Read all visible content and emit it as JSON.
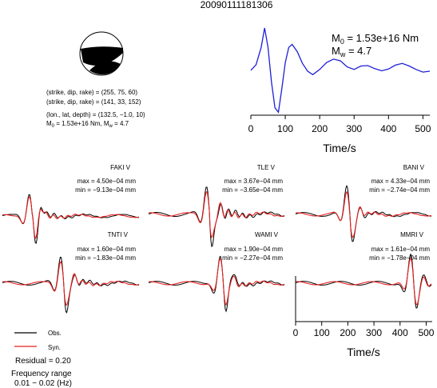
{
  "title": "20090111181306",
  "focal_mechanism": {
    "plane1": "(strike, dip, rake) = (255, 75, 60)",
    "plane2": "(strike, dip, rake) = (141, 33, 152)",
    "location": "(lon., lat, depth) = (132.5, −1.0, 10)",
    "mag_m0": "M",
    "mag_m0_sub": "0",
    "mag_m0_val": " = 1.53e+16 Nm, M",
    "mag_mw_sub": "w",
    "mag_mw_val": " = 4.7"
  },
  "stf": {
    "m0_label": "M",
    "m0_sub": "0",
    "m0_value": " = 1.53e+16 Nm",
    "mw_label": "M",
    "mw_sub": "w",
    "mw_value": " = 4.7",
    "xlabel": "Time/s"
  },
  "bottom_axis": {
    "xlabel": "Time/s"
  },
  "legend": {
    "obs": "Obs.",
    "syn": "Syn.",
    "obs_color": "#000000",
    "syn_color": "#e8201f"
  },
  "residual": "Residual = 0.20",
  "freq_label": "Frequency range",
  "freq_value": "0.01 − 0.02 (Hz)",
  "stations": [
    {
      "name": "FAKI V",
      "max": "max = 4.50e−04 mm",
      "min": "min = −9.13e−04 mm"
    },
    {
      "name": "TLE V",
      "max": "max = 3.67e−04 mm",
      "min": "min = −3.65e−04 mm"
    },
    {
      "name": "BANI V",
      "max": "max = 4.33e−04 mm",
      "min": "min = −2.74e−04 mm"
    },
    {
      "name": "TNTI V",
      "max": "max = 1.60e−04 mm",
      "min": "min = −1.83e−04 mm"
    },
    {
      "name": "WAMI V",
      "max": "max = 1.90e−04 mm",
      "min": "min = −2.27e−04 mm"
    },
    {
      "name": "MMRI V",
      "max": "max = 1.61e−04 mm",
      "min": "min = −1.78e−04 mm"
    }
  ],
  "chart_data": [
    {
      "type": "line",
      "xlabel": "Time/s",
      "xlim": [
        0,
        520
      ],
      "xticks": [
        0,
        100,
        200,
        300,
        400,
        500
      ],
      "series": [
        {
          "color": "#1f1fd8",
          "x": [
            0,
            15,
            30,
            40,
            50,
            60,
            70,
            80,
            90,
            100,
            110,
            120,
            135,
            150,
            165,
            180,
            200,
            220,
            240,
            260,
            280,
            300,
            320,
            340,
            360,
            380,
            400,
            420,
            440,
            460,
            480,
            500,
            520
          ],
          "y": [
            0.02,
            0.15,
            0.55,
            1.0,
            0.55,
            -0.25,
            -0.85,
            -0.95,
            -0.4,
            0.2,
            0.55,
            0.62,
            0.45,
            0.18,
            0.0,
            -0.08,
            0.04,
            0.2,
            0.28,
            0.24,
            0.1,
            0.04,
            0.12,
            0.13,
            0.06,
            0.01,
            0.05,
            0.14,
            0.18,
            0.12,
            0.04,
            -0.02,
            0.0
          ]
        }
      ]
    },
    {
      "type": "line",
      "xlabel": "Time/s",
      "xlim": [
        0,
        520
      ],
      "xticks": [
        0,
        100,
        200,
        300,
        400,
        500
      ]
    }
  ]
}
